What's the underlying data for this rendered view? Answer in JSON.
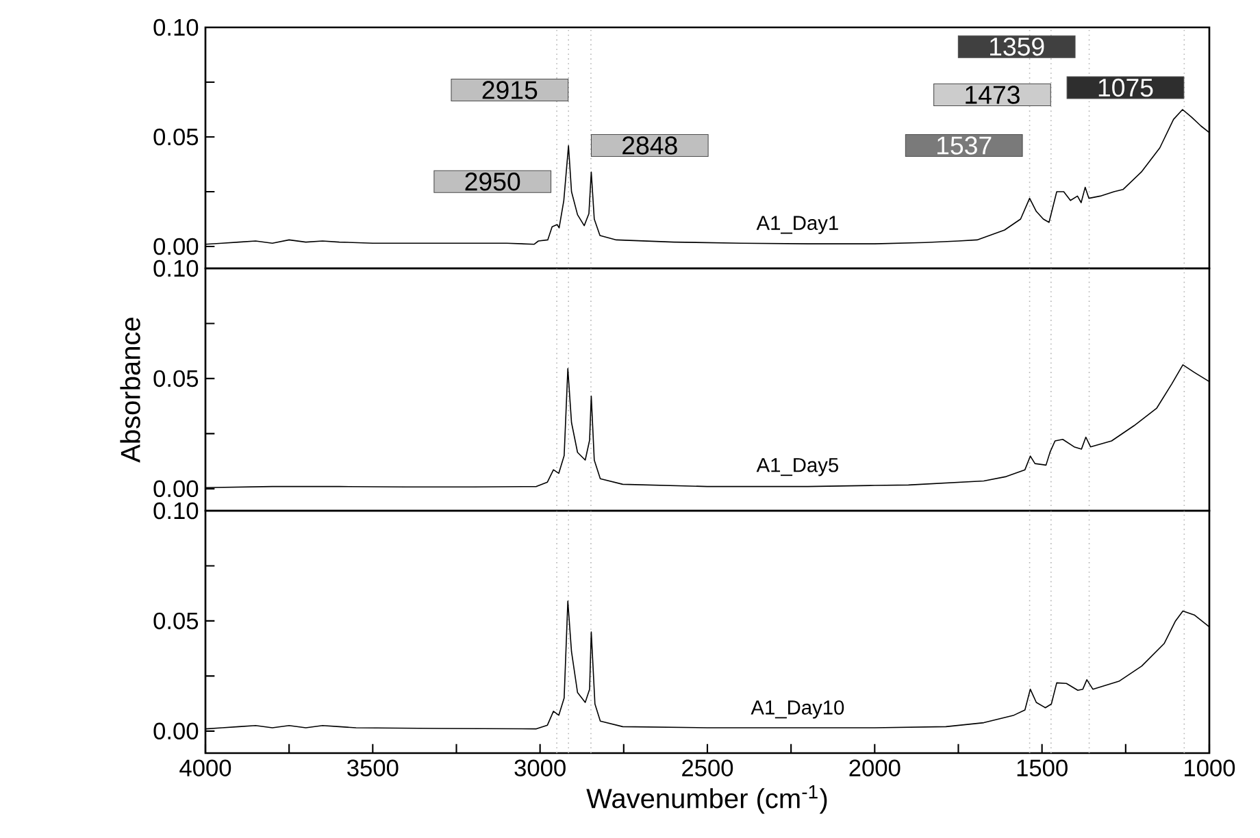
{
  "chart_data": [
    {
      "type": "line",
      "tick_labels": "y",
      "series": [
        {
          "name": "A1_Day1",
          "color": "#000000",
          "x": [
            4000,
            3950,
            3900,
            3850,
            3800,
            3750,
            3700,
            3650,
            3600,
            3500,
            3300,
            3100,
            3018,
            3005,
            2977,
            2964,
            2949,
            2943,
            2929,
            2915,
            2906,
            2888,
            2868,
            2854,
            2847,
            2838,
            2821,
            2772,
            2600,
            2400,
            2200,
            2000,
            1850,
            1750,
            1694,
            1612,
            1564,
            1537,
            1517,
            1496,
            1479,
            1456,
            1435,
            1415,
            1394,
            1383,
            1371,
            1360,
            1326,
            1285,
            1258,
            1203,
            1148,
            1107,
            1080,
            1053,
            1025,
            1000
          ],
          "values": [
            0.001,
            0.0015,
            0.002,
            0.0025,
            0.0015,
            0.003,
            0.002,
            0.0025,
            0.002,
            0.0015,
            0.0015,
            0.0015,
            0.001,
            0.0025,
            0.003,
            0.009,
            0.01,
            0.0085,
            0.021,
            0.046,
            0.025,
            0.0145,
            0.0095,
            0.015,
            0.034,
            0.0125,
            0.005,
            0.003,
            0.002,
            0.0015,
            0.0012,
            0.0012,
            0.0018,
            0.0025,
            0.003,
            0.0075,
            0.0125,
            0.022,
            0.016,
            0.0125,
            0.011,
            0.025,
            0.025,
            0.021,
            0.023,
            0.02,
            0.027,
            0.022,
            0.023,
            0.025,
            0.026,
            0.034,
            0.045,
            0.058,
            0.0625,
            0.059,
            0.055,
            0.052
          ]
        }
      ],
      "xlim": [
        4000,
        1000
      ],
      "ylim": [
        -0.01,
        0.1
      ],
      "yticks": [
        {
          "value": 0,
          "label": "0.00"
        },
        {
          "value": 0.025,
          "label": null
        },
        {
          "value": 0.05,
          "label": "0.05"
        },
        {
          "value": 0.075,
          "label": null
        },
        {
          "value": 0.1,
          "label": "0.10"
        }
      ],
      "ref_lines": [
        {
          "axis": "x",
          "value": 2950,
          "label": "2950",
          "color": "#b4b4b4",
          "line_style": "dotted"
        },
        {
          "axis": "x",
          "value": 2915,
          "label": "2915",
          "color": "#b4b4b4",
          "line_style": "dotted"
        },
        {
          "axis": "x",
          "value": 2848,
          "label": "2848",
          "color": "#b4b4b4",
          "line_style": "dotted"
        },
        {
          "axis": "x",
          "value": 1537,
          "label": "1537",
          "color": "#b4b4b4",
          "line_style": "dotted"
        },
        {
          "axis": "x",
          "value": 1473,
          "label": "1473",
          "color": "#b4b4b4",
          "line_style": "dotted"
        },
        {
          "axis": "x",
          "value": 1359,
          "label": "1359",
          "color": "#b4b4b4",
          "line_style": "dotted"
        },
        {
          "axis": "x",
          "value": 1075,
          "label": "1075",
          "color": "#b4b4b4",
          "line_style": "dotted"
        }
      ]
    },
    {
      "type": "line",
      "tick_labels": "y",
      "ylabel": "Absorbance",
      "series": [
        {
          "name": "A1_Day5",
          "color": "#000000",
          "x": [
            4000,
            3800,
            3600,
            3400,
            3200,
            3011,
            2978,
            2960,
            2944,
            2928,
            2917,
            2906,
            2888,
            2865,
            2852,
            2847,
            2838,
            2820,
            2753,
            2500,
            2200,
            2000,
            1899,
            1674,
            1607,
            1551,
            1535,
            1521,
            1488,
            1476,
            1461,
            1438,
            1404,
            1382,
            1369,
            1355,
            1292,
            1225,
            1157,
            1112,
            1079,
            1045,
            1000
          ],
          "values": [
            0.0005,
            0.001,
            0.001,
            0.0008,
            0.0008,
            0.001,
            0.003,
            0.0086,
            0.007,
            0.015,
            0.0545,
            0.03,
            0.0165,
            0.013,
            0.022,
            0.042,
            0.013,
            0.0045,
            0.002,
            0.001,
            0.001,
            0.0015,
            0.0017,
            0.0035,
            0.0055,
            0.0086,
            0.0148,
            0.0114,
            0.0107,
            0.0166,
            0.0217,
            0.0224,
            0.019,
            0.018,
            0.0234,
            0.019,
            0.0217,
            0.0286,
            0.0366,
            0.0476,
            0.0562,
            0.0528,
            0.0486
          ]
        }
      ],
      "xlim": [
        4000,
        1000
      ],
      "ylim": [
        -0.01,
        0.1
      ],
      "yticks": [
        {
          "value": 0,
          "label": "0.00"
        },
        {
          "value": 0.025,
          "label": null
        },
        {
          "value": 0.05,
          "label": "0.05"
        },
        {
          "value": 0.075,
          "label": null
        },
        {
          "value": 0.1,
          "label": "0.10"
        }
      ],
      "ref_lines": [
        {
          "axis": "x",
          "value": 2950,
          "line_style": "dotted"
        },
        {
          "axis": "x",
          "value": 2915,
          "line_style": "dotted"
        },
        {
          "axis": "x",
          "value": 2848,
          "line_style": "dotted"
        },
        {
          "axis": "x",
          "value": 1537,
          "line_style": "dotted"
        },
        {
          "axis": "x",
          "value": 1473,
          "line_style": "dotted"
        },
        {
          "axis": "x",
          "value": 1359,
          "line_style": "dotted"
        },
        {
          "axis": "x",
          "value": 1075,
          "line_style": "dotted"
        }
      ]
    },
    {
      "type": "line",
      "xlabel": "Wavenumber (cm$^{-1}$)",
      "series": [
        {
          "name": "A1_Day10",
          "color": "#000000",
          "x": [
            4000,
            3950,
            3900,
            3850,
            3800,
            3750,
            3700,
            3650,
            3600,
            3550,
            3300,
            3011,
            2978,
            2960,
            2944,
            2928,
            2917,
            2906,
            2888,
            2865,
            2852,
            2847,
            2836,
            2820,
            2753,
            2500,
            2000,
            1787,
            1674,
            1584,
            1551,
            1535,
            1517,
            1490,
            1472,
            1456,
            1427,
            1393,
            1378,
            1366,
            1348,
            1270,
            1202,
            1135,
            1101,
            1079,
            1045,
            1000
          ],
          "values": [
            0.001,
            0.0015,
            0.002,
            0.0025,
            0.0015,
            0.0025,
            0.0015,
            0.0025,
            0.002,
            0.0015,
            0.0012,
            0.001,
            0.0027,
            0.009,
            0.0072,
            0.015,
            0.059,
            0.036,
            0.0175,
            0.013,
            0.019,
            0.045,
            0.0123,
            0.0045,
            0.002,
            0.0015,
            0.0015,
            0.002,
            0.0038,
            0.0072,
            0.0096,
            0.019,
            0.013,
            0.0106,
            0.0123,
            0.0219,
            0.0216,
            0.0185,
            0.019,
            0.0233,
            0.019,
            0.0226,
            0.0295,
            0.0397,
            0.05,
            0.0545,
            0.0527,
            0.0473
          ]
        }
      ],
      "xlim": [
        4000,
        1000
      ],
      "xticks": [
        4000,
        {
          "value": 3750,
          "label": null
        },
        3500,
        {
          "value": 3250,
          "label": null
        },
        3000,
        {
          "value": 2750,
          "label": null
        },
        2500,
        {
          "value": 2250,
          "label": null
        },
        2000,
        {
          "value": 1750,
          "label": null
        },
        1500,
        {
          "value": 1250,
          "label": null
        },
        1000
      ],
      "ylim": [
        -0.01,
        0.1
      ],
      "yticks": [
        {
          "value": 0,
          "label": "0.00"
        },
        {
          "value": 0.025,
          "label": null
        },
        {
          "value": 0.05,
          "label": "0.05"
        },
        {
          "value": 0.075,
          "label": null
        },
        {
          "value": 0.1,
          "label": "0.10"
        }
      ],
      "ref_lines": [
        {
          "axis": "x",
          "value": 2950,
          "line_style": "dotted"
        },
        {
          "axis": "x",
          "value": 2915,
          "line_style": "dotted"
        },
        {
          "axis": "x",
          "value": 2848,
          "line_style": "dotted"
        },
        {
          "axis": "x",
          "value": 1537,
          "line_style": "dotted"
        },
        {
          "axis": "x",
          "value": 1473,
          "line_style": "dotted"
        },
        {
          "axis": "x",
          "value": 1359,
          "line_style": "dotted"
        },
        {
          "axis": "x",
          "value": 1075,
          "line_style": "dotted"
        }
      ]
    }
  ]
}
